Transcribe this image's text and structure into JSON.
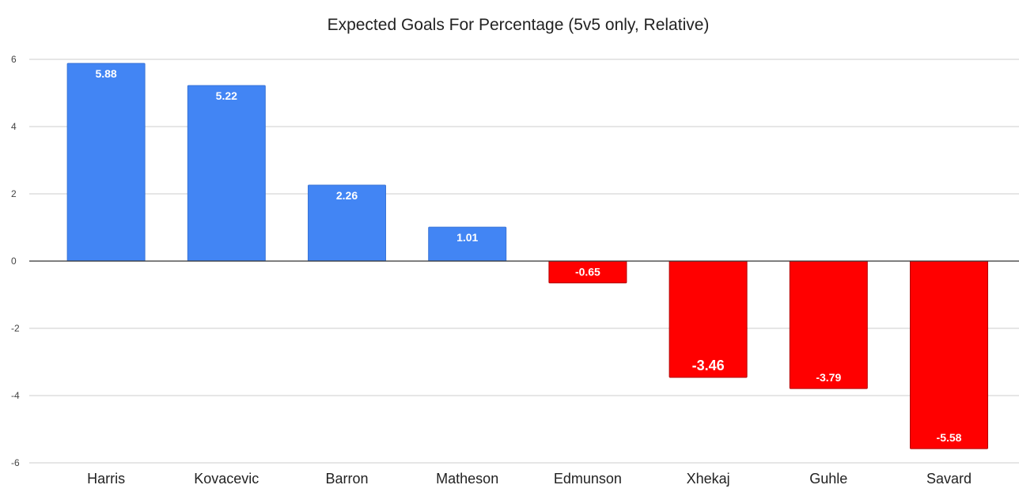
{
  "chart_data": {
    "type": "bar",
    "title": "Expected Goals For Percentage (5v5 only, Relative)",
    "xlabel": "",
    "ylabel": "",
    "categories": [
      "Harris",
      "Kovacevic",
      "Barron",
      "Matheson",
      "Edmunson",
      "Xhekaj",
      "Guhle",
      "Savard"
    ],
    "values": [
      5.88,
      5.22,
      2.26,
      1.01,
      -0.65,
      -3.46,
      -3.79,
      -5.58
    ],
    "value_labels": [
      "5.88",
      "5.22",
      "2.26",
      "1.01",
      "-0.65",
      "-3.46",
      "-3.79",
      "-5.58"
    ],
    "ylim": [
      -6,
      6
    ],
    "yticks": [
      6,
      4,
      2,
      0,
      -2,
      -4,
      -6
    ],
    "grid": true,
    "legend": "none",
    "colors": {
      "positive": "#4285f4",
      "negative": "#ff0000",
      "grid": "#cccccc",
      "zero_line": "#333333",
      "axis_text": "#444444",
      "label_text": "#ffffff"
    }
  }
}
